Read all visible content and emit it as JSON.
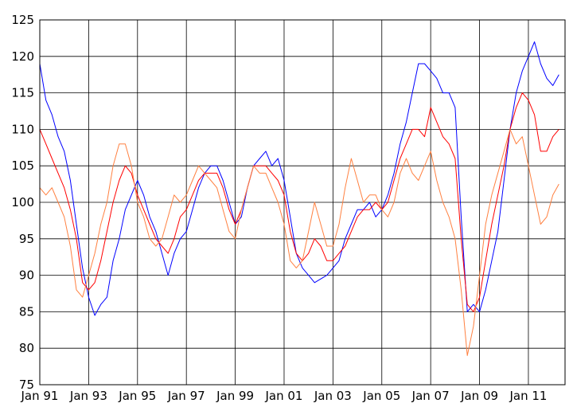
{
  "chart_data": {
    "type": "line",
    "title": "",
    "xlabel": "",
    "ylabel": "",
    "ylim": [
      75,
      125
    ],
    "y_ticks": [
      75,
      80,
      85,
      90,
      95,
      100,
      105,
      110,
      115,
      120,
      125
    ],
    "x_ticks": [
      {
        "label": "Jan 91",
        "x": 1991.0
      },
      {
        "label": "Jan 93",
        "x": 1993.0
      },
      {
        "label": "Jan 95",
        "x": 1995.0
      },
      {
        "label": "Jan 97",
        "x": 1997.0
      },
      {
        "label": "Jan 99",
        "x": 1999.0
      },
      {
        "label": "Jan 01",
        "x": 2001.0
      },
      {
        "label": "Jan 03",
        "x": 2003.0
      },
      {
        "label": "Jan 05",
        "x": 2005.0
      },
      {
        "label": "Jan 07",
        "x": 2007.0
      },
      {
        "label": "Jan 09",
        "x": 2009.0
      },
      {
        "label": "Jan 11",
        "x": 2011.0
      }
    ],
    "xlim": [
      1991.0,
      2012.5
    ],
    "grid": true,
    "legend": "none",
    "series": [
      {
        "color": "#0000ff",
        "x": [
          1991.0,
          1991.25,
          1991.5,
          1991.75,
          1992.0,
          1992.25,
          1992.5,
          1992.75,
          1993.0,
          1993.25,
          1993.5,
          1993.75,
          1994.0,
          1994.25,
          1994.5,
          1994.75,
          1995.0,
          1995.25,
          1995.5,
          1995.75,
          1996.0,
          1996.25,
          1996.5,
          1996.75,
          1997.0,
          1997.25,
          1997.5,
          1997.75,
          1998.0,
          1998.25,
          1998.5,
          1998.75,
          1999.0,
          1999.25,
          1999.5,
          1999.75,
          2000.0,
          2000.25,
          2000.5,
          2000.75,
          2001.0,
          2001.25,
          2001.5,
          2001.75,
          2002.0,
          2002.25,
          2002.5,
          2002.75,
          2003.0,
          2003.25,
          2003.5,
          2003.75,
          2004.0,
          2004.25,
          2004.5,
          2004.75,
          2005.0,
          2005.25,
          2005.5,
          2005.75,
          2006.0,
          2006.25,
          2006.5,
          2006.75,
          2007.0,
          2007.25,
          2007.5,
          2007.75,
          2008.0,
          2008.25,
          2008.5,
          2008.75,
          2009.0,
          2009.25,
          2009.5,
          2009.75,
          2010.0,
          2010.25,
          2010.5,
          2010.75,
          2011.0,
          2011.25,
          2011.5,
          2011.75,
          2012.0,
          2012.25
        ],
        "values": [
          119,
          114,
          112,
          109,
          107,
          103,
          97,
          91,
          87,
          84.5,
          86,
          87,
          92,
          95,
          99,
          101,
          103,
          101,
          98,
          96,
          93,
          90,
          93,
          95,
          96,
          99,
          102,
          104,
          105,
          105,
          103,
          100,
          97,
          98,
          102,
          105,
          106,
          107,
          105,
          106,
          103,
          98,
          93,
          91,
          90,
          89,
          89.5,
          90,
          91,
          92,
          95,
          97,
          99,
          99,
          100,
          98,
          99,
          101,
          104,
          108,
          111,
          115,
          119,
          119,
          118,
          117,
          115,
          115,
          113,
          98,
          85,
          86,
          85,
          88,
          92,
          96,
          103,
          110,
          115,
          118,
          120,
          122,
          119,
          117,
          116,
          117.5
        ]
      },
      {
        "color": "#ff0000",
        "x": [
          1991.0,
          1991.25,
          1991.5,
          1991.75,
          1992.0,
          1992.25,
          1992.5,
          1992.75,
          1993.0,
          1993.25,
          1993.5,
          1993.75,
          1994.0,
          1994.25,
          1994.5,
          1994.75,
          1995.0,
          1995.25,
          1995.5,
          1995.75,
          1996.0,
          1996.25,
          1996.5,
          1996.75,
          1997.0,
          1997.25,
          1997.5,
          1997.75,
          1998.0,
          1998.25,
          1998.5,
          1998.75,
          1999.0,
          1999.25,
          1999.5,
          1999.75,
          2000.0,
          2000.25,
          2000.5,
          2000.75,
          2001.0,
          2001.25,
          2001.5,
          2001.75,
          2002.0,
          2002.25,
          2002.5,
          2002.75,
          2003.0,
          2003.25,
          2003.5,
          2003.75,
          2004.0,
          2004.25,
          2004.5,
          2004.75,
          2005.0,
          2005.25,
          2005.5,
          2005.75,
          2006.0,
          2006.25,
          2006.5,
          2006.75,
          2007.0,
          2007.25,
          2007.5,
          2007.75,
          2008.0,
          2008.25,
          2008.5,
          2008.75,
          2009.0,
          2009.25,
          2009.5,
          2009.75,
          2010.0,
          2010.25,
          2010.5,
          2010.75,
          2011.0,
          2011.25,
          2011.5,
          2011.75,
          2012.0,
          2012.25
        ],
        "values": [
          110,
          108,
          106,
          104,
          102,
          99,
          95,
          89,
          88,
          89,
          92,
          96,
          100,
          103,
          105,
          104,
          101,
          99,
          97,
          95,
          94,
          93,
          95,
          98,
          99,
          101,
          103,
          104,
          104,
          104,
          102,
          99,
          97,
          99,
          102,
          105,
          105,
          105,
          104,
          103,
          101,
          96,
          93,
          92,
          93,
          95,
          94,
          92,
          92,
          93,
          94,
          96,
          98,
          99,
          99,
          100,
          99,
          100,
          103,
          106,
          108,
          110,
          110,
          109,
          113,
          111,
          109,
          108,
          106,
          95,
          86,
          85,
          87,
          92,
          97,
          101,
          105,
          110,
          113,
          115,
          114,
          112,
          107,
          107,
          109,
          110
        ]
      },
      {
        "color": "#ff8040",
        "x": [
          1991.0,
          1991.25,
          1991.5,
          1991.75,
          1992.0,
          1992.25,
          1992.5,
          1992.75,
          1993.0,
          1993.25,
          1993.5,
          1993.75,
          1994.0,
          1994.25,
          1994.5,
          1994.75,
          1995.0,
          1995.25,
          1995.5,
          1995.75,
          1996.0,
          1996.25,
          1996.5,
          1996.75,
          1997.0,
          1997.25,
          1997.5,
          1997.75,
          1998.0,
          1998.25,
          1998.5,
          1998.75,
          1999.0,
          1999.25,
          1999.5,
          1999.75,
          2000.0,
          2000.25,
          2000.5,
          2000.75,
          2001.0,
          2001.25,
          2001.5,
          2001.75,
          2002.0,
          2002.25,
          2002.5,
          2002.75,
          2003.0,
          2003.25,
          2003.5,
          2003.75,
          2004.0,
          2004.25,
          2004.5,
          2004.75,
          2005.0,
          2005.25,
          2005.5,
          2005.75,
          2006.0,
          2006.25,
          2006.5,
          2006.75,
          2007.0,
          2007.25,
          2007.5,
          2007.75,
          2008.0,
          2008.25,
          2008.5,
          2008.75,
          2009.0,
          2009.25,
          2009.5,
          2009.75,
          2010.0,
          2010.25,
          2010.5,
          2010.75,
          2011.0,
          2011.25,
          2011.5,
          2011.75,
          2012.0,
          2012.25
        ],
        "values": [
          102,
          101,
          102,
          100,
          98,
          94,
          88,
          87,
          90,
          93,
          97,
          100,
          105,
          108,
          108,
          105,
          100,
          98,
          95,
          94,
          95,
          98,
          101,
          100,
          101,
          103,
          105,
          104,
          103,
          102,
          99,
          96,
          95,
          99,
          102,
          105,
          104,
          104,
          102,
          100,
          97,
          92,
          91,
          92,
          96,
          100,
          97,
          94,
          94,
          97,
          102,
          106,
          103,
          100,
          101,
          101,
          99,
          98,
          100,
          104,
          106,
          104,
          103,
          105,
          107,
          103,
          100,
          98,
          95,
          88,
          79,
          83,
          90,
          97,
          101,
          104,
          107,
          110,
          108,
          109,
          105,
          101,
          97,
          98,
          101,
          102.5
        ]
      }
    ]
  }
}
